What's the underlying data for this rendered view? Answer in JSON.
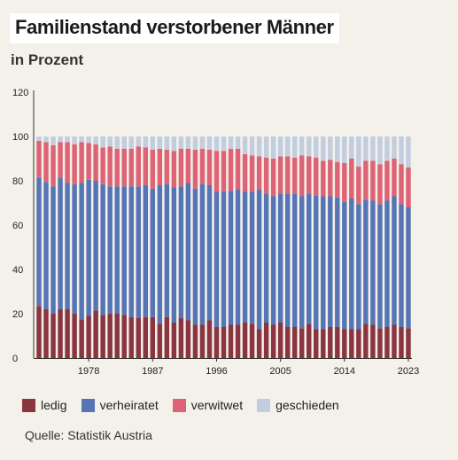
{
  "title": "Familienstand verstorbener Männer",
  "subtitle": "in Prozent",
  "source": "Quelle: Statistik Austria",
  "colors": {
    "ledig": "#8a3540",
    "verheiratet": "#5675b5",
    "verwitwet": "#de6475",
    "geschieden": "#c2cde0"
  },
  "legend": [
    {
      "key": "ledig",
      "label": "ledig"
    },
    {
      "key": "verheiratet",
      "label": "verheiratet"
    },
    {
      "key": "verwitwet",
      "label": "verwitwet"
    },
    {
      "key": "geschieden",
      "label": "geschieden"
    }
  ],
  "chart_data": {
    "type": "bar",
    "stacked": true,
    "title": "Familienstand verstorbener Männer",
    "subtitle": "in Prozent",
    "ylim": [
      0,
      120
    ],
    "yticks": [
      0,
      20,
      40,
      60,
      80,
      100,
      120
    ],
    "xtick_labels": [
      "1978",
      "1987",
      "1996",
      "2005",
      "2014",
      "2023"
    ],
    "categories": [
      1971,
      1972,
      1973,
      1974,
      1975,
      1976,
      1977,
      1978,
      1979,
      1980,
      1981,
      1982,
      1983,
      1984,
      1985,
      1986,
      1987,
      1988,
      1989,
      1990,
      1991,
      1992,
      1993,
      1994,
      1995,
      1996,
      1997,
      1998,
      1999,
      2000,
      2001,
      2002,
      2003,
      2004,
      2005,
      2006,
      2007,
      2008,
      2009,
      2010,
      2011,
      2012,
      2013,
      2014,
      2015,
      2016,
      2017,
      2018,
      2019,
      2020,
      2021,
      2022,
      2023
    ],
    "series": [
      {
        "name": "ledig",
        "values": [
          23.5,
          22,
          20,
          22,
          22,
          20,
          17.5,
          19,
          21.5,
          19.5,
          20,
          20,
          19.5,
          18.5,
          18,
          18.5,
          18.5,
          15.5,
          18.5,
          16,
          18,
          17,
          15,
          15,
          17,
          14,
          14,
          15,
          15,
          16,
          15.5,
          13,
          16,
          15,
          16,
          14,
          14,
          13.5,
          15.5,
          13,
          13,
          14,
          14,
          13,
          13,
          13,
          15.5,
          15,
          13.5,
          14,
          15,
          14,
          13.5
        ]
      },
      {
        "name": "verheiratet",
        "values": [
          58,
          57.5,
          57.5,
          59.5,
          57,
          58.5,
          61.5,
          61.5,
          58.5,
          59,
          57.5,
          57.5,
          58,
          59,
          59.5,
          59.5,
          58,
          62.5,
          60,
          61,
          59.5,
          62,
          61.5,
          63.5,
          61,
          61,
          61,
          60.5,
          61,
          59,
          59.5,
          63,
          58,
          58,
          58,
          60,
          60,
          59.5,
          58.5,
          60.5,
          60,
          59,
          58.5,
          57.5,
          59,
          56.5,
          56,
          56,
          56,
          57,
          58,
          55.5,
          54.5
        ]
      },
      {
        "name": "verwitwet",
        "values": [
          16.5,
          18,
          18.5,
          16,
          18.5,
          18,
          18.5,
          16.5,
          16.5,
          16.5,
          18,
          17,
          17,
          17,
          18,
          17,
          17.5,
          16.5,
          15.5,
          16.5,
          17,
          15.5,
          17.5,
          16,
          16,
          18.5,
          18.5,
          19,
          18.5,
          17,
          16.5,
          15,
          16.5,
          17,
          17,
          17,
          16.5,
          18.5,
          17,
          17,
          16,
          16.5,
          16,
          17.5,
          18,
          17,
          17.5,
          18,
          18,
          18,
          17,
          18,
          18
        ]
      },
      {
        "name": "geschieden",
        "values": [
          2,
          2.5,
          4,
          2.5,
          2.5,
          3.5,
          2.5,
          3,
          3.5,
          5,
          4.5,
          5.5,
          5.5,
          5.5,
          4.5,
          5,
          6,
          5.5,
          6,
          6.5,
          5.5,
          5.5,
          6,
          5.5,
          6,
          6.5,
          6.5,
          5.5,
          5.5,
          8,
          8.5,
          9,
          9.5,
          10,
          9,
          9,
          9.5,
          8.5,
          9,
          9.5,
          11,
          10.5,
          11.5,
          12,
          10,
          13.5,
          11,
          11,
          12.5,
          11,
          10,
          12.5,
          14
        ]
      }
    ]
  }
}
